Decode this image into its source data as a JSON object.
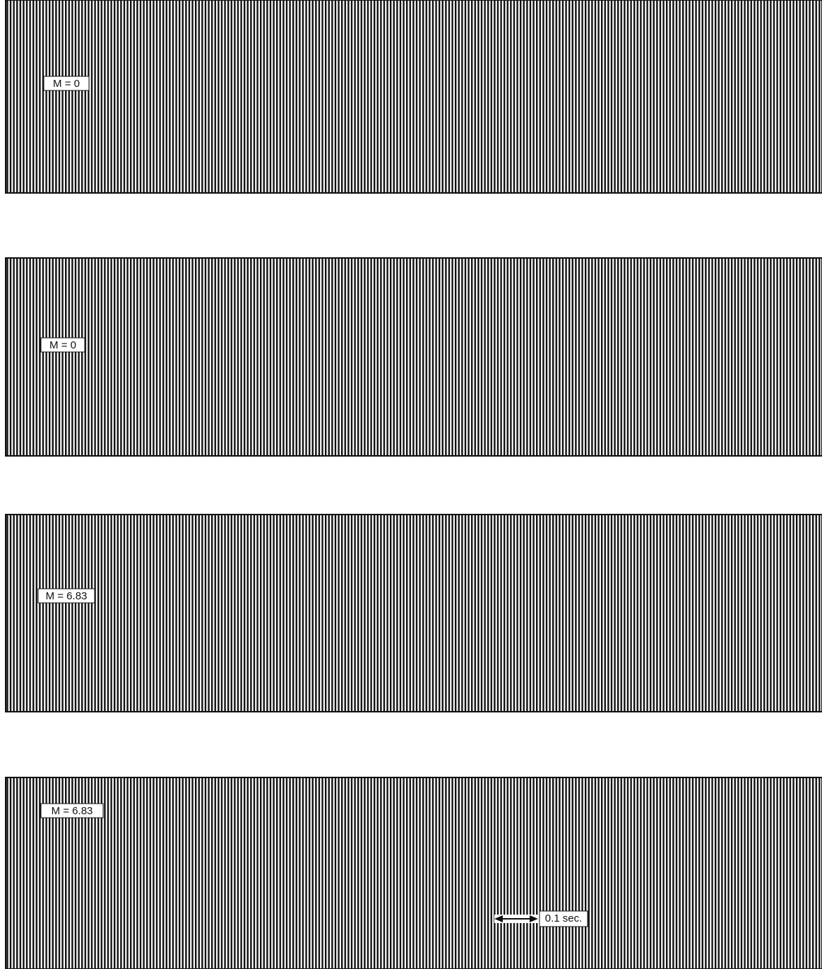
{
  "panels": [
    {
      "label": "M = 0"
    },
    {
      "label": "M = 0"
    },
    {
      "label": "M = 6.83"
    },
    {
      "label": "M = 6.83"
    }
  ],
  "scale": {
    "label": "0.1 sec."
  }
}
